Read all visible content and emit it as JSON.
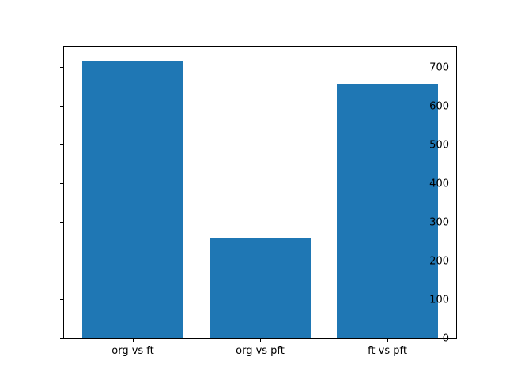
{
  "chart_data": {
    "type": "bar",
    "title": "",
    "xlabel": "",
    "ylabel": "",
    "categories": [
      "org vs ft",
      "org vs pft",
      "ft vs pft"
    ],
    "values": [
      717,
      258,
      655
    ],
    "yticks": [
      0,
      100,
      200,
      300,
      400,
      500,
      600,
      700
    ],
    "ylim": [
      0,
      753
    ],
    "bar_color": "#1f77b4",
    "spine_color": "#000000",
    "background_color": "#ffffff",
    "grid": false,
    "legend": null
  }
}
